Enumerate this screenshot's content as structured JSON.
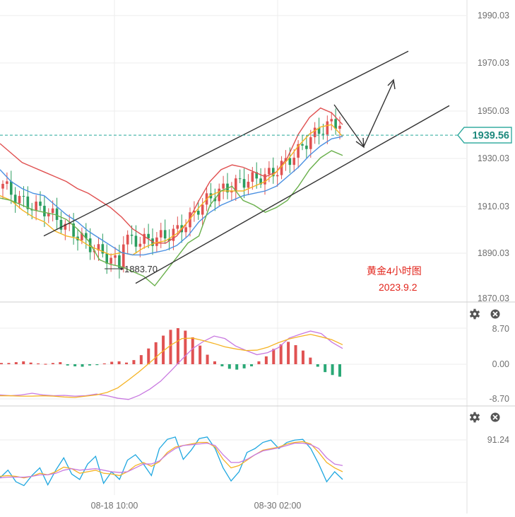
{
  "chart_data": [
    {
      "type": "line",
      "title": "黄金4小时图",
      "subtitle": "2023.9.2",
      "price_axis": {
        "ticks": [
          "1990.03",
          "1970.03",
          "1950.03",
          "1930.03",
          "1910.03",
          "1890.03",
          "1870.03"
        ],
        "range": [
          1867,
          1996
        ]
      },
      "current_price": "1939.56",
      "low_marker": "1883.70",
      "series": [
        {
          "name": "",
          "color": "#e05050",
          "values": [
            1936,
            1932,
            1928,
            1926,
            1924,
            1922,
            1920,
            1917,
            1915,
            1912,
            1909,
            1905,
            1900,
            1897,
            1894,
            1894,
            1897,
            1903,
            1912,
            1920,
            1925,
            1927,
            1926,
            1924,
            1922,
            1924,
            1930,
            1940,
            1947,
            1951,
            1949,
            1944
          ]
        },
        {
          "name": "",
          "color": "#f5b323",
          "values": [
            1914,
            1912,
            1908,
            1905,
            1903,
            1899,
            1897,
            1896,
            1893,
            1891,
            1889,
            1890,
            1889,
            1892,
            1894,
            1895,
            1898,
            1903,
            1909,
            1914,
            1916,
            1916,
            1916,
            1918,
            1920,
            1924,
            1929,
            1935,
            1940,
            1943,
            1944,
            1939
          ]
        },
        {
          "name": "",
          "color": "#4a90e2",
          "values": [
            1925,
            1920,
            1917,
            1915,
            1914,
            1910,
            1906,
            1903,
            1899,
            1896,
            1893,
            1890,
            1889,
            1889,
            1890,
            1891,
            1893,
            1897,
            1903,
            1907,
            1910,
            1912,
            1914,
            1915,
            1916,
            1918,
            1922,
            1926,
            1931,
            1935,
            1938,
            1939
          ]
        },
        {
          "name": "",
          "color": "#6ab04c",
          "values": [
            1913,
            1912,
            1910,
            1908,
            1907,
            1906,
            1904,
            1900,
            1895,
            1887,
            1885,
            1884,
            1882,
            1880,
            1876,
            1882,
            1888,
            1894,
            1897,
            1910,
            1916,
            1918,
            1912,
            1910,
            1907,
            1909,
            1912,
            1918,
            1925,
            1930,
            1933,
            1931
          ]
        }
      ],
      "channel": {
        "upper": [
          1897,
          1975
        ],
        "lower": [
          1877,
          1952
        ]
      },
      "arrows": [
        "up",
        "down"
      ]
    },
    {
      "type": "bar",
      "axis_ticks": [
        "8.70",
        "0.00",
        "-8.70"
      ],
      "histogram": [
        0.3,
        0.3,
        0.5,
        0.7,
        0.4,
        0.2,
        0.1,
        0.3,
        0.5,
        -0.3,
        -0.5,
        -0.6,
        -0.3,
        -0.1,
        0.2,
        0.6,
        0.7,
        0.4,
        1.0,
        2.2,
        3.8,
        5.3,
        6.9,
        8.3,
        8.7,
        8.1,
        6.5,
        4.5,
        2.3,
        0.7,
        -0.5,
        -1.1,
        -1.3,
        -1.0,
        -0.5,
        0.7,
        1.9,
        3.7,
        4.8,
        5.4,
        4.6,
        3.3,
        1.6,
        -0.6,
        -1.9,
        -2.6,
        -3.0
      ],
      "series": [
        {
          "name": "",
          "color": "#c879e0",
          "values": [
            -7.4,
            -7.6,
            -7.4,
            -7.0,
            -7.4,
            -7.6,
            -7.5,
            -7.7,
            -7.6,
            -7.2,
            -7.6,
            -8.2,
            -8.5,
            -7.5,
            -6.0,
            -4.1,
            -1.5,
            1.2,
            3.8,
            5.5,
            6.8,
            6.2,
            4.4,
            3.3,
            2.3,
            2.8,
            4.0,
            6.3,
            7.2,
            8.0,
            7.4,
            5.3,
            3.8
          ]
        },
        {
          "name": "",
          "color": "#f5b323",
          "values": [
            -7.6,
            -7.6,
            -7.7,
            -7.7,
            -7.6,
            -7.7,
            -7.9,
            -8.0,
            -7.7,
            -7.4,
            -6.8,
            -5.7,
            -3.8,
            -1.8,
            0.4,
            2.7,
            4.7,
            6.2,
            6.3,
            5.7,
            5.0,
            4.2,
            3.7,
            3.3,
            3.4,
            4.1,
            5.2,
            6.1,
            6.7,
            7.2,
            6.6,
            5.9,
            4.7
          ]
        }
      ]
    },
    {
      "type": "line",
      "axis_ticks": [
        "91.24"
      ],
      "series": [
        {
          "name": "",
          "color": "#1ea7e0",
          "values": [
            42,
            52,
            37,
            32,
            45,
            55,
            33,
            52,
            68,
            47,
            40,
            60,
            70,
            35,
            50,
            40,
            65,
            72,
            60,
            45,
            80,
            92,
            95,
            66,
            78,
            93,
            95,
            80,
            55,
            38,
            50,
            75,
            80,
            88,
            91,
            80,
            88,
            91,
            92,
            80,
            60,
            37,
            50,
            40
          ]
        },
        {
          "name": "",
          "color": "#f5b323",
          "values": [
            44,
            45,
            44,
            42,
            44,
            48,
            46,
            50,
            56,
            54,
            48,
            50,
            52,
            48,
            47,
            45,
            50,
            58,
            62,
            57,
            63,
            75,
            82,
            84,
            86,
            88,
            88,
            82,
            66,
            55,
            58,
            65,
            72,
            78,
            80,
            82,
            86,
            88,
            89,
            86,
            75,
            62,
            55,
            50
          ]
        },
        {
          "name": "",
          "color": "#c879e0",
          "values": [
            42,
            43,
            43,
            43,
            44,
            46,
            46,
            48,
            52,
            54,
            52,
            53,
            54,
            52,
            50,
            49,
            50,
            55,
            60,
            60,
            64,
            73,
            80,
            84,
            85,
            86,
            87,
            84,
            72,
            62,
            62,
            66,
            72,
            77,
            79,
            81,
            84,
            87,
            87,
            85,
            80,
            68,
            60,
            58
          ]
        }
      ]
    }
  ],
  "time_axis": [
    "08-18 10:00",
    "08-30 02:00"
  ],
  "icons": [
    "gear-icon",
    "close-icon"
  ]
}
